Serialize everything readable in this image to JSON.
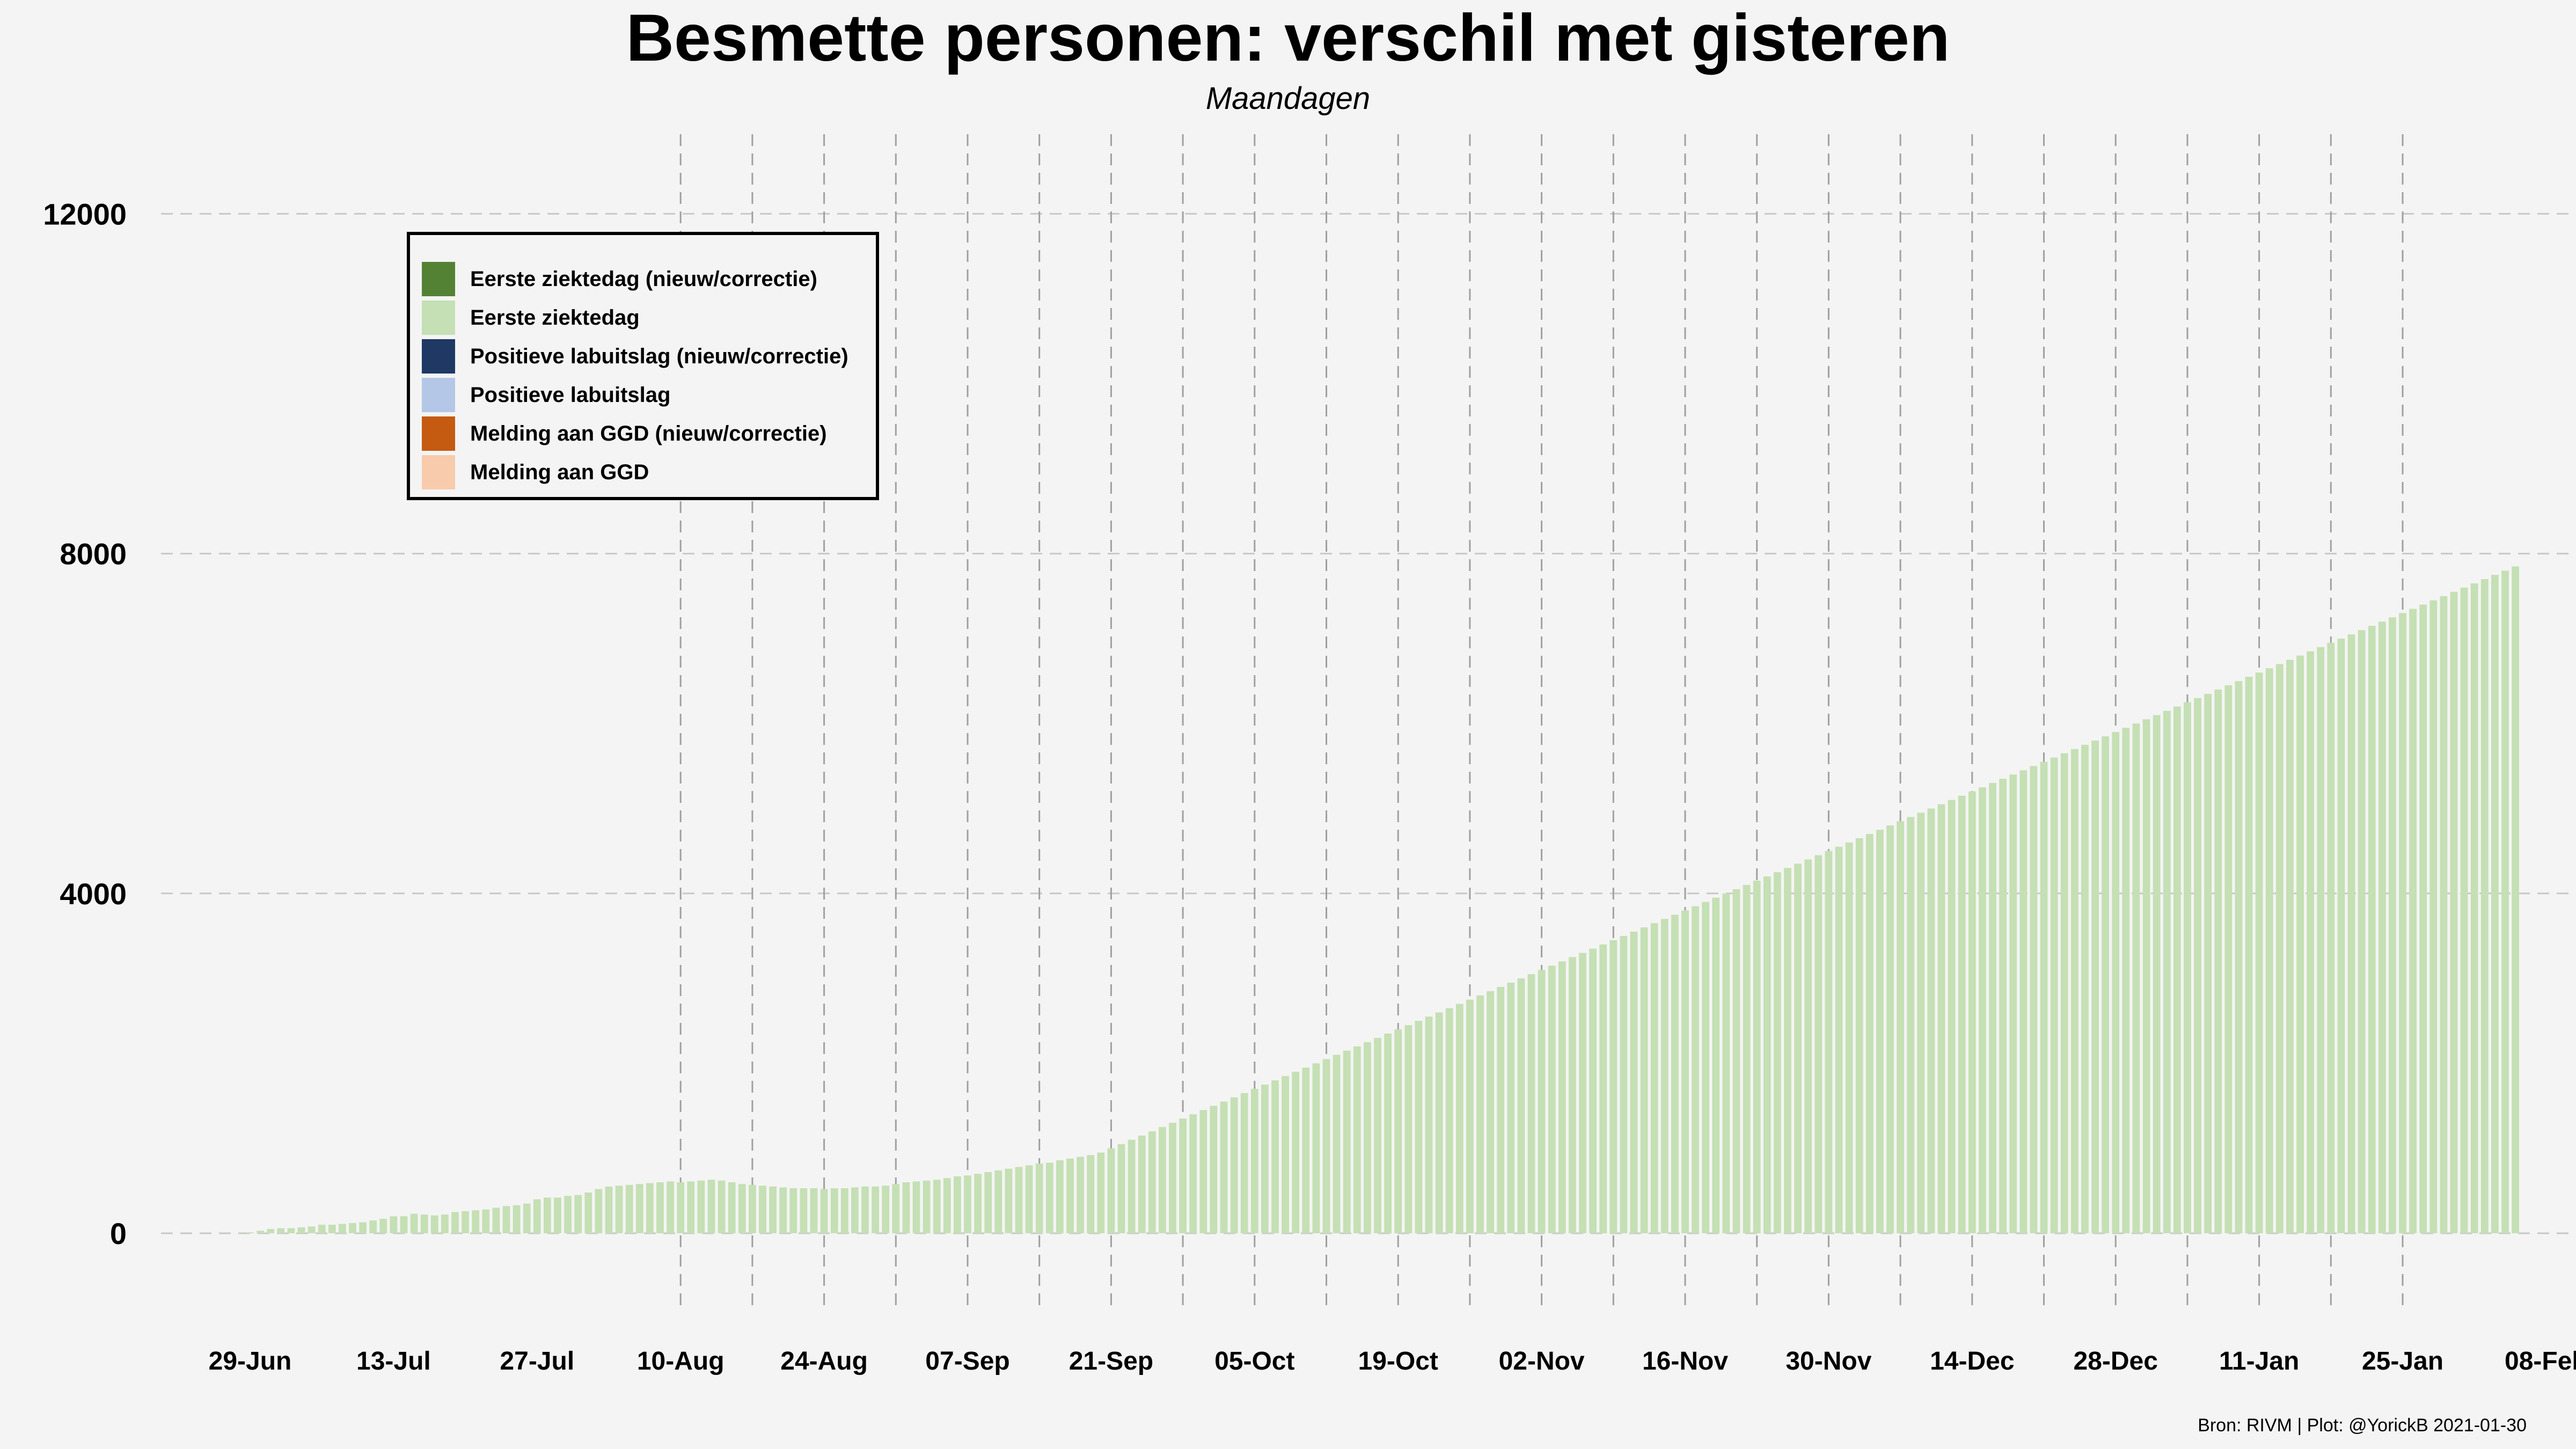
{
  "title": "Besmette personen: verschil met gisteren",
  "subtitle": "Maandagen",
  "caption": "Bron: RIVM | Plot: @YorickB  2021-01-30",
  "colors": {
    "eerste_nieuw": "#548235",
    "eerste": "#c5e0b4",
    "pos_nieuw": "#1f3864",
    "pos": "#b4c7e7",
    "melding_nieuw": "#c55a11",
    "melding": "#f8cbad",
    "grid": "#c8c8c8",
    "monday_line": "#a0a0a0"
  },
  "legend": [
    {
      "label": "Eerste ziektedag (nieuw/correctie)",
      "color": "#548235"
    },
    {
      "label": "Eerste ziektedag",
      "color": "#c5e0b4"
    },
    {
      "label": "Positieve labuitslag (nieuw/correctie)",
      "color": "#1f3864"
    },
    {
      "label": "Positieve labuitslag",
      "color": "#b4c7e7"
    },
    {
      "label": "Melding aan GGD (nieuw/correctie)",
      "color": "#c55a11"
    },
    {
      "label": "Melding aan GGD",
      "color": "#f8cbad"
    }
  ],
  "chart_data": {
    "type": "bar",
    "title": "Besmette personen: verschil met gisteren",
    "subtitle": "Maandagen",
    "x_start": "2020-06-29",
    "ylim": [
      -600,
      12600
    ],
    "y_ticks": [
      0,
      4000,
      8000,
      12000
    ],
    "x_ticks": [
      "29-Jun",
      "13-Jul",
      "27-Jul",
      "10-Aug",
      "24-Aug",
      "07-Sep",
      "21-Sep",
      "05-Oct",
      "19-Oct",
      "02-Nov",
      "16-Nov",
      "30-Nov",
      "14-Dec",
      "28-Dec",
      "11-Jan",
      "25-Jan",
      "08-Feb"
    ],
    "mondays_marked": [
      "2020-08-10",
      "2020-08-17",
      "2020-08-24",
      "2020-08-31",
      "2020-09-07",
      "2020-09-14",
      "2020-09-21",
      "2020-09-28",
      "2020-10-05",
      "2020-10-12",
      "2020-10-19",
      "2020-10-26",
      "2020-11-02",
      "2020-11-09",
      "2020-11-16",
      "2020-11-23",
      "2020-11-30",
      "2020-12-07",
      "2020-12-14",
      "2020-12-21",
      "2020-12-28",
      "2021-01-04",
      "2021-01-11",
      "2021-01-18",
      "2021-01-25"
    ],
    "grid": "horizontal dashed",
    "legend_position": "top-left",
    "series": [
      {
        "name": "Eerste ziektedag",
        "values": [
          10,
          30,
          50,
          60,
          60,
          70,
          80,
          100,
          100,
          110,
          120,
          130,
          150,
          170,
          200,
          200,
          230,
          220,
          210,
          220,
          250,
          260,
          270,
          280,
          300,
          320,
          330,
          350,
          400,
          420,
          420,
          440,
          450,
          480,
          520,
          550,
          560,
          570,
          580,
          590,
          600,
          610,
          600,
          610,
          620,
          630,
          620,
          600,
          580,
          570,
          560,
          550,
          540,
          530,
          530,
          530,
          520,
          530,
          530,
          540,
          550,
          550,
          560,
          580,
          600,
          610,
          620,
          630,
          650,
          670,
          680,
          700,
          720,
          740,
          760,
          780,
          800,
          820,
          830,
          860,
          880,
          900,
          920,
          950,
          1000,
          1050,
          1100,
          1150,
          1200,
          1250,
          1300,
          1350,
          1400,
          1450,
          1500,
          1550,
          1600,
          1650,
          1700,
          1750,
          1800,
          1850,
          1900,
          1950,
          2000,
          2050,
          2100,
          2150,
          2200,
          2250,
          2300,
          2350,
          2400,
          2450,
          2500,
          2550,
          2600,
          2650,
          2700,
          2750,
          2800,
          2850,
          2900,
          2950,
          3000,
          3050,
          3100,
          3150,
          3200,
          3250,
          3300,
          3350,
          3400,
          3450,
          3500,
          3550,
          3600,
          3650,
          3700,
          3750,
          3800,
          3850,
          3900,
          3950,
          4000,
          4050,
          4100,
          4150,
          4200,
          4250,
          4300,
          4350,
          4400,
          4450,
          4500,
          4550,
          4600,
          4650,
          4700,
          4750,
          4800,
          4850,
          4900,
          4950,
          5000,
          5050,
          5100,
          5150,
          5200,
          5250,
          5300,
          5350,
          5400,
          5450,
          5500,
          5550,
          5600,
          5650,
          5700,
          5750,
          5800,
          5850,
          5900,
          5950,
          6000,
          6050,
          6100,
          6150,
          6200,
          6250,
          6300,
          6350,
          6400,
          6450,
          6500,
          6550,
          6600,
          6650,
          6700,
          6750,
          6800,
          6850,
          6900,
          6950,
          7000,
          7050,
          7100,
          7150,
          7200,
          7250,
          7300,
          7350,
          7400,
          7450,
          7500,
          7550,
          7600,
          7650,
          7700,
          7750,
          7800,
          7850
        ]
      },
      {
        "name": "Eerste ziektedag (nieuw/correctie)",
        "values": []
      },
      {
        "name": "Positieve labuitslag",
        "values": []
      },
      {
        "name": "Positieve labuitslag (nieuw/correctie)",
        "values": []
      },
      {
        "name": "Melding aan GGD",
        "values": []
      },
      {
        "name": "Melding aan GGD (nieuw/correctie)",
        "values": []
      }
    ]
  }
}
